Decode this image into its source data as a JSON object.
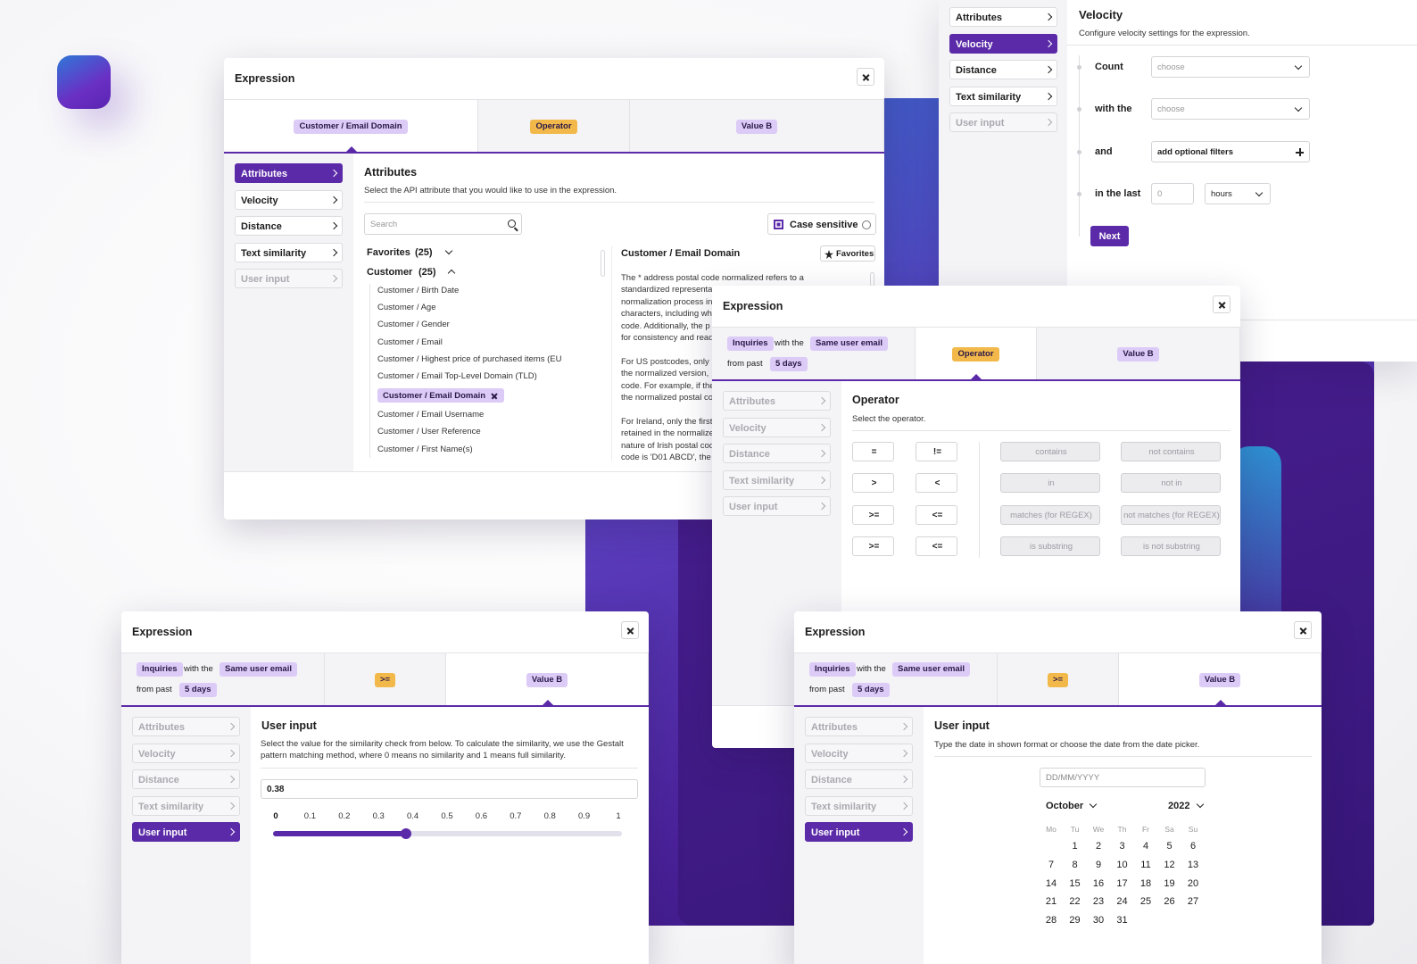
{
  "velocity_panel": {
    "menu": [
      "Attributes",
      "Velocity",
      "Distance",
      "Text similarity",
      "User input"
    ],
    "title": "Velocity",
    "description": "Configure velocity settings for the expression.",
    "count_label": "Count",
    "count_select": "choose",
    "with_label": "with the",
    "with_select": "choose",
    "and_label": "and",
    "filters": "add optional filters",
    "last_label": "in the last",
    "last_input": 0,
    "last_unit": "hours",
    "next": "Next"
  },
  "attributes_panel": {
    "title": "Expression",
    "attribute": "Customer / Email Domain",
    "operator": "Operator",
    "value": "Value B",
    "menu": [
      "Attributes",
      "Velocity",
      "Distance",
      "Text similarity",
      "User input"
    ],
    "heading": "Attributes",
    "description": "Select the API attribute that you would like to use in the expression.",
    "search": "Search",
    "case_sensitive": "Case sensitive",
    "groups": [
      {
        "name": "Favorites",
        "count": "(25)"
      },
      {
        "name": "Customer",
        "count": "(25)"
      }
    ],
    "items": [
      "Customer / Birth Date",
      "Customer / Age",
      "Customer / Gender",
      "Customer / Email",
      "Customer / Highest price of purchased items (EU",
      "Customer / Email Top-Level Domain (TLD)",
      "Customer / Email Domain",
      "Customer / Email Username",
      "Customer / User Reference",
      "Customer / First Name(s)"
    ],
    "detail_title": "Customer / Email Domain",
    "favorites": "Favorites",
    "detail_paragraphs": [
      [
        "The * address postal code normalized refers to a",
        "standardized representa",
        "normalization process in",
        "characters, including wh",
        "code. Additionally, the p",
        "for consistency and read"
      ],
      [
        "For US postcodes, only",
        "the normalized version,",
        "code. For example, if the",
        "the normalized postal co"
      ],
      [
        "For Ireland, only the first",
        "retained in the normalize",
        "nature of Irish postal cod",
        "code is 'D01 ABCD', the"
      ]
    ]
  },
  "operator_panel": {
    "title": "Expression",
    "expression": {
      "first": "Inquiries",
      "connector": "with the",
      "second": "Same user email",
      "prefix": "from past",
      "period": "5 days"
    },
    "operator": "Operator",
    "value": "Value B",
    "menu": [
      "Attributes",
      "Velocity",
      "Distance",
      "Text similarity",
      "User input"
    ],
    "heading": "Operator",
    "description": "Select the operator.",
    "comparison": [
      "=",
      "!=",
      ">",
      "<",
      ">=",
      "<=",
      ">=",
      "<="
    ],
    "text_operators": [
      "contains",
      "not contains",
      "in",
      "not in",
      "matches (for REGEX)",
      "not matches (for REGEX)",
      "is substring",
      "is not substring"
    ]
  },
  "slider_panel": {
    "title": "Expression",
    "expression": {
      "first": "Inquiries",
      "connector": "with the",
      "second": "Same user email",
      "prefix": "from past",
      "period": "5 days"
    },
    "operator": ">=",
    "value": "Value B",
    "menu": [
      "Attributes",
      "Velocity",
      "Distance",
      "Text similarity",
      "User input"
    ],
    "heading": "User input",
    "description": "Select the value for the similarity check from below. To calculate the similarity, we use the Gestalt pattern matching method, where 0 means no similarity and 1 means full similarity.",
    "input": 0.38,
    "ticks": [
      0,
      0.1,
      0.2,
      0.3,
      0.4,
      0.5,
      0.6,
      0.7,
      0.8,
      0.9,
      1
    ]
  },
  "date_panel": {
    "title": "Expression",
    "expression": {
      "first": "Inquiries",
      "connector": "with the",
      "second": "Same user email",
      "prefix": "from past",
      "period": "5 days"
    },
    "operator": ">=",
    "value": "Value B",
    "menu": [
      "Attributes",
      "Velocity",
      "Distance",
      "Text similarity",
      "User input"
    ],
    "heading": "User input",
    "description": "Type the date in shown format or choose the date from the date picker.",
    "placeholder": "DD/MM/YYYY",
    "month": "October",
    "year": 2022,
    "weekdays": [
      "Mo",
      "Tu",
      "We",
      "Th",
      "Fr",
      "Sa",
      "Su"
    ],
    "days": [
      1,
      2,
      3,
      4,
      5,
      6,
      7,
      8,
      9,
      10,
      11,
      12,
      13,
      14,
      15,
      16,
      17,
      18,
      19,
      20,
      21,
      22,
      23,
      24,
      25,
      26,
      27,
      28,
      29,
      30,
      31
    ]
  }
}
